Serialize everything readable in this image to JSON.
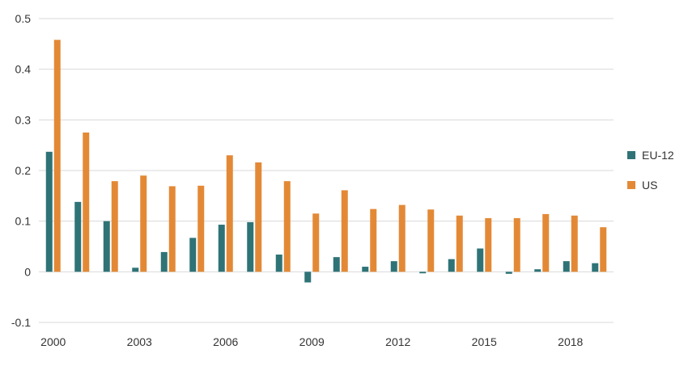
{
  "chart_data": {
    "type": "bar",
    "title": "",
    "xlabel": "",
    "ylabel": "",
    "ylim": [
      -0.1,
      0.5
    ],
    "yticks": [
      "-0.1",
      "0",
      "0.1",
      "0.2",
      "0.3",
      "0.4",
      "0.5"
    ],
    "categories": [
      "2000",
      "2001",
      "2002",
      "2003",
      "2004",
      "2005",
      "2006",
      "2007",
      "2008",
      "2009",
      "2010",
      "2011",
      "2012",
      "2013",
      "2014",
      "2015",
      "2016",
      "2017",
      "2018",
      "2019"
    ],
    "xtick_labels": [
      "2000",
      "2003",
      "2006",
      "2009",
      "2012",
      "2015",
      "2018"
    ],
    "grid": true,
    "legend_position": "right",
    "series": [
      {
        "name": "EU-12",
        "color": "#2f7377",
        "values": [
          0.237,
          0.138,
          0.1,
          0.008,
          0.039,
          0.067,
          0.093,
          0.098,
          0.034,
          -0.021,
          0.029,
          0.01,
          0.021,
          -0.003,
          0.025,
          0.046,
          -0.004,
          0.005,
          0.021,
          0.017
        ]
      },
      {
        "name": "US",
        "color": "#e38936",
        "values": [
          0.458,
          0.275,
          0.179,
          0.19,
          0.169,
          0.17,
          0.23,
          0.216,
          0.179,
          0.115,
          0.161,
          0.124,
          0.132,
          0.123,
          0.111,
          0.106,
          0.106,
          0.114,
          0.111,
          0.088
        ]
      }
    ]
  }
}
